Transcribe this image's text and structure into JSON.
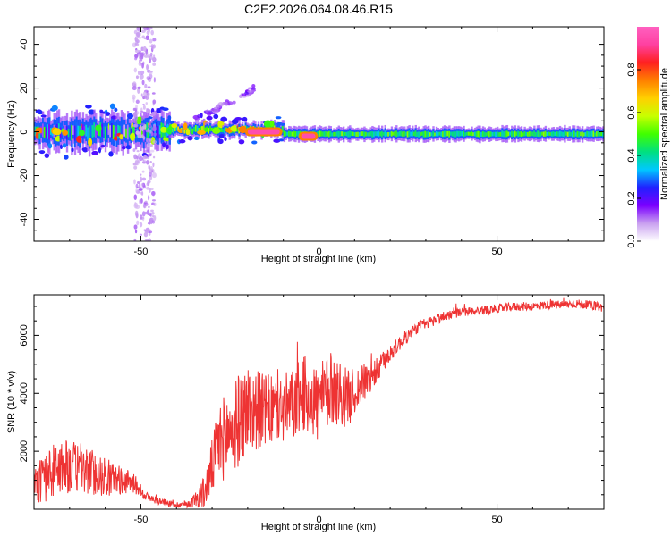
{
  "figure": {
    "title": "C2E2.2026.064.08.46.R15"
  },
  "chart_data": [
    {
      "type": "heatmap",
      "xlabel": "Height of straight line (km)",
      "ylabel": "Frequency (Hz)",
      "xlim": [
        -80,
        80
      ],
      "ylim": [
        -50,
        48
      ],
      "xticks": [
        -50,
        0,
        50
      ],
      "yticks": [
        -40,
        -20,
        0,
        20,
        40
      ],
      "grid": false,
      "colorbar": {
        "label": "Normalized spectral amplitude",
        "range": [
          0,
          1
        ],
        "ticks": [
          "0.0",
          "0.2",
          "0.4",
          "0.6",
          "0.8"
        ],
        "colors": [
          "#ffffff",
          "#c9a0f0",
          "#7a00ff",
          "#2020ff",
          "#00c8ff",
          "#00e080",
          "#40ff00",
          "#c8ff00",
          "#ffd000",
          "#ff8000",
          "#ff2020",
          "#ff40a0",
          "#ff60c0"
        ]
      },
      "features": [
        {
          "name": "band",
          "x_range": [
            -80,
            -42
          ],
          "center_freq": 0,
          "width": 6,
          "mean_amplitude": 0.3,
          "noise": "high"
        },
        {
          "name": "band",
          "x_range": [
            -42,
            -10
          ],
          "center_freq": 1,
          "width": 3,
          "mean_amplitude": 0.5,
          "noise": "medium"
        },
        {
          "name": "band",
          "x_range": [
            -10,
            80
          ],
          "center_freq": -1,
          "width": 3,
          "mean_amplitude": 0.45,
          "noise": "low"
        },
        {
          "name": "vertical scatter",
          "x_range": [
            -52,
            -46
          ],
          "freq_range": [
            -50,
            48
          ],
          "mean_amplitude": 0.05
        },
        {
          "name": "peak",
          "x_range": [
            -20,
            -11
          ],
          "freq": 0,
          "amplitude": 0.95
        },
        {
          "name": "peak",
          "x_range": [
            -5,
            -1
          ],
          "freq": -2,
          "amplitude": 0.95
        },
        {
          "name": "tail",
          "x_range": [
            -35,
            -18
          ],
          "freq_range": [
            5,
            20
          ],
          "mean_amplitude": 0.1
        }
      ]
    },
    {
      "type": "line",
      "xlabel": "Height of straight line (km)",
      "ylabel": "SNR (10 * v/v)",
      "xlim": [
        -80,
        80
      ],
      "ylim": [
        0,
        7400
      ],
      "xticks": [
        -50,
        0,
        50
      ],
      "yticks": [
        2000,
        4000,
        6000
      ],
      "grid": false,
      "series": [
        {
          "color": "#ee3333",
          "x": [
            -80,
            -76,
            -72,
            -68,
            -64,
            -60,
            -56,
            -52,
            -48,
            -44,
            -40,
            -36,
            -32,
            -28,
            -24,
            -20,
            -16,
            -12,
            -8,
            -4,
            0,
            4,
            8,
            12,
            16,
            20,
            24,
            28,
            32,
            36,
            40,
            44,
            48,
            52,
            56,
            60,
            64,
            68,
            72,
            76,
            80
          ],
          "y": [
            800,
            1200,
            1500,
            1400,
            1300,
            1100,
            1000,
            900,
            400,
            250,
            150,
            200,
            600,
            2300,
            2800,
            3500,
            3400,
            3400,
            3500,
            4000,
            3600,
            4200,
            3800,
            4300,
            4700,
            5400,
            5900,
            6300,
            6500,
            6700,
            6800,
            6850,
            6900,
            6950,
            7000,
            7000,
            7050,
            7050,
            7100,
            7050,
            6950
          ],
          "noise_amplitude": [
            700,
            900,
            1000,
            900,
            800,
            700,
            500,
            350,
            150,
            120,
            100,
            150,
            600,
            1400,
            1600,
            1600,
            1300,
            1200,
            1300,
            1300,
            1400,
            1300,
            1000,
            700,
            500,
            300,
            250,
            200,
            200,
            180,
            150,
            150,
            150,
            150,
            150,
            150,
            150,
            150,
            150,
            150,
            150
          ]
        }
      ]
    }
  ]
}
